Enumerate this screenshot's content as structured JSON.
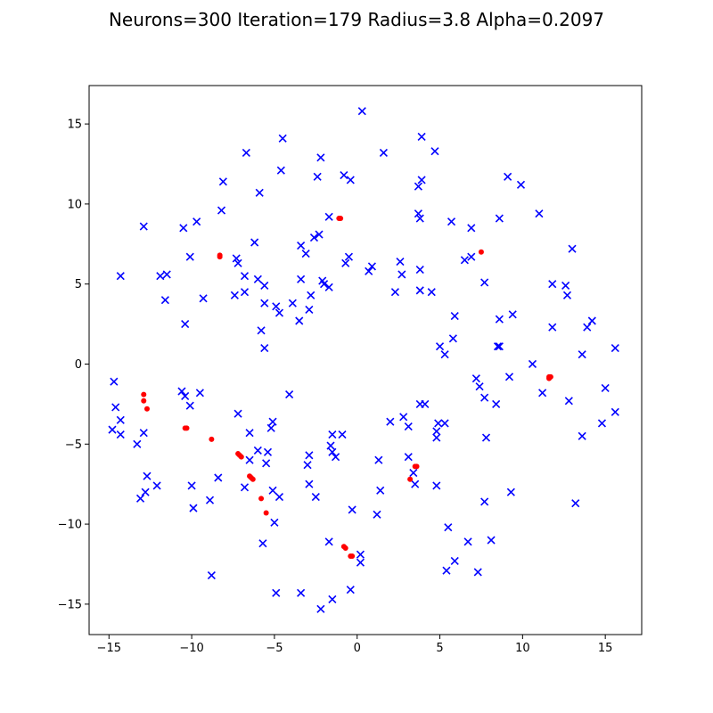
{
  "chart_data": {
    "type": "scatter",
    "title": "Neurons=300 Iteration=179 Radius=3.8 Alpha=0.2097",
    "xlabel": "",
    "ylabel": "",
    "xlim": [
      -16.2,
      17.2
    ],
    "ylim": [
      -16.9,
      17.4
    ],
    "xticks": [
      -15,
      -10,
      -5,
      0,
      5,
      10,
      15
    ],
    "yticks": [
      -15,
      -10,
      -5,
      0,
      5,
      10,
      15
    ],
    "grid": false,
    "series": [
      {
        "marker": "x",
        "color": "#0000ff",
        "points": [
          [
            0.3,
            15.8
          ],
          [
            -4.5,
            14.1
          ],
          [
            3.9,
            14.2
          ],
          [
            -6.7,
            13.2
          ],
          [
            1.6,
            13.2
          ],
          [
            4.7,
            13.3
          ],
          [
            -2.2,
            12.9
          ],
          [
            -4.6,
            12.1
          ],
          [
            -2.4,
            11.7
          ],
          [
            -0.8,
            11.8
          ],
          [
            -0.4,
            11.5
          ],
          [
            3.7,
            11.1
          ],
          [
            3.9,
            11.5
          ],
          [
            9.1,
            11.7
          ],
          [
            9.9,
            11.2
          ],
          [
            -8.1,
            11.4
          ],
          [
            -5.9,
            10.7
          ],
          [
            -8.2,
            9.6
          ],
          [
            -1.7,
            9.2
          ],
          [
            3.7,
            9.4
          ],
          [
            3.8,
            9.1
          ],
          [
            11.0,
            9.4
          ],
          [
            8.6,
            9.1
          ],
          [
            -12.9,
            8.6
          ],
          [
            -10.5,
            8.5
          ],
          [
            -9.7,
            8.9
          ],
          [
            -2.3,
            8.1
          ],
          [
            -2.6,
            7.9
          ],
          [
            5.7,
            8.9
          ],
          [
            6.9,
            8.5
          ],
          [
            -6.2,
            7.6
          ],
          [
            -3.4,
            7.4
          ],
          [
            -3.1,
            6.9
          ],
          [
            -10.1,
            6.7
          ],
          [
            -7.3,
            6.6
          ],
          [
            -7.2,
            6.3
          ],
          [
            -0.5,
            6.7
          ],
          [
            -0.7,
            6.3
          ],
          [
            0.9,
            6.1
          ],
          [
            0.7,
            5.8
          ],
          [
            2.6,
            6.4
          ],
          [
            3.8,
            5.9
          ],
          [
            6.5,
            6.5
          ],
          [
            6.9,
            6.7
          ],
          [
            13.0,
            7.2
          ],
          [
            -14.3,
            5.5
          ],
          [
            -11.9,
            5.5
          ],
          [
            -11.5,
            5.6
          ],
          [
            -6.8,
            5.5
          ],
          [
            -6.0,
            5.3
          ],
          [
            -5.6,
            4.9
          ],
          [
            -3.4,
            5.3
          ],
          [
            -2.1,
            5.2
          ],
          [
            -2.0,
            5.0
          ],
          [
            -1.7,
            4.8
          ],
          [
            2.7,
            5.6
          ],
          [
            7.7,
            5.1
          ],
          [
            11.8,
            5.0
          ],
          [
            12.6,
            4.9
          ],
          [
            -11.6,
            4.0
          ],
          [
            -9.3,
            4.1
          ],
          [
            -7.4,
            4.3
          ],
          [
            -6.8,
            4.5
          ],
          [
            -5.6,
            3.8
          ],
          [
            -4.9,
            3.6
          ],
          [
            -4.7,
            3.2
          ],
          [
            -2.8,
            4.3
          ],
          [
            -3.9,
            3.8
          ],
          [
            2.3,
            4.5
          ],
          [
            3.8,
            4.6
          ],
          [
            4.5,
            4.5
          ],
          [
            12.7,
            4.3
          ],
          [
            -10.4,
            2.5
          ],
          [
            -5.8,
            2.1
          ],
          [
            -3.5,
            2.7
          ],
          [
            -2.9,
            3.4
          ],
          [
            5.9,
            3.0
          ],
          [
            8.6,
            2.8
          ],
          [
            9.4,
            3.1
          ],
          [
            11.8,
            2.3
          ],
          [
            14.2,
            2.7
          ],
          [
            13.9,
            2.3
          ],
          [
            -5.6,
            1.0
          ],
          [
            5.0,
            1.1
          ],
          [
            5.3,
            0.6
          ],
          [
            5.8,
            1.6
          ],
          [
            8.5,
            1.1
          ],
          [
            8.6,
            1.1
          ],
          [
            13.6,
            0.6
          ],
          [
            15.6,
            1.0
          ],
          [
            10.6,
            0.0
          ],
          [
            -14.7,
            -1.1
          ],
          [
            -10.6,
            -1.7
          ],
          [
            -10.4,
            -2.0
          ],
          [
            -9.5,
            -1.8
          ],
          [
            -10.1,
            -2.6
          ],
          [
            -4.1,
            -1.9
          ],
          [
            7.2,
            -0.9
          ],
          [
            7.4,
            -1.4
          ],
          [
            9.2,
            -0.8
          ],
          [
            11.2,
            -1.8
          ],
          [
            7.7,
            -2.1
          ],
          [
            3.8,
            -2.5
          ],
          [
            4.1,
            -2.5
          ],
          [
            8.4,
            -2.5
          ],
          [
            12.8,
            -2.3
          ],
          [
            15.0,
            -1.5
          ],
          [
            -14.6,
            -2.7
          ],
          [
            -14.3,
            -3.5
          ],
          [
            -14.8,
            -4.1
          ],
          [
            -14.3,
            -4.4
          ],
          [
            -12.9,
            -4.3
          ],
          [
            -13.3,
            -5.0
          ],
          [
            -7.2,
            -3.1
          ],
          [
            -5.1,
            -3.6
          ],
          [
            -5.2,
            -4.0
          ],
          [
            -6.5,
            -4.3
          ],
          [
            -1.5,
            -4.4
          ],
          [
            -0.9,
            -4.4
          ],
          [
            -1.6,
            -5.1
          ],
          [
            -1.5,
            -5.5
          ],
          [
            2.0,
            -3.6
          ],
          [
            2.8,
            -3.3
          ],
          [
            3.1,
            -3.9
          ],
          [
            4.9,
            -3.7
          ],
          [
            5.3,
            -3.7
          ],
          [
            4.8,
            -4.2
          ],
          [
            4.8,
            -4.6
          ],
          [
            7.8,
            -4.6
          ],
          [
            13.6,
            -4.5
          ],
          [
            14.8,
            -3.7
          ],
          [
            15.6,
            -3.0
          ],
          [
            -6.0,
            -5.4
          ],
          [
            -5.4,
            -5.5
          ],
          [
            -5.5,
            -6.2
          ],
          [
            -6.5,
            -6.0
          ],
          [
            -2.9,
            -5.7
          ],
          [
            -3.0,
            -6.3
          ],
          [
            -1.3,
            -5.8
          ],
          [
            1.3,
            -6.0
          ],
          [
            3.1,
            -5.8
          ],
          [
            3.4,
            -6.8
          ],
          [
            3.5,
            -7.5
          ],
          [
            -12.7,
            -7.0
          ],
          [
            -12.1,
            -7.6
          ],
          [
            -12.8,
            -8.0
          ],
          [
            -13.1,
            -8.4
          ],
          [
            -10.0,
            -7.6
          ],
          [
            -8.4,
            -7.1
          ],
          [
            -8.9,
            -8.5
          ],
          [
            -9.9,
            -9.0
          ],
          [
            -6.8,
            -7.7
          ],
          [
            -5.1,
            -7.9
          ],
          [
            -4.7,
            -8.3
          ],
          [
            -2.9,
            -7.5
          ],
          [
            -2.5,
            -8.3
          ],
          [
            1.4,
            -7.9
          ],
          [
            4.8,
            -7.6
          ],
          [
            7.7,
            -8.6
          ],
          [
            9.3,
            -8.0
          ],
          [
            13.2,
            -8.7
          ],
          [
            -5.0,
            -9.9
          ],
          [
            -0.3,
            -9.1
          ],
          [
            1.2,
            -9.4
          ],
          [
            -5.7,
            -11.2
          ],
          [
            -1.7,
            -11.1
          ],
          [
            0.2,
            -11.9
          ],
          [
            0.2,
            -12.4
          ],
          [
            5.5,
            -10.2
          ],
          [
            6.7,
            -11.1
          ],
          [
            8.1,
            -11.0
          ],
          [
            5.9,
            -12.3
          ],
          [
            5.4,
            -12.9
          ],
          [
            7.3,
            -13.0
          ],
          [
            -8.8,
            -13.2
          ],
          [
            -4.9,
            -14.3
          ],
          [
            -3.4,
            -14.3
          ],
          [
            -1.5,
            -14.7
          ],
          [
            -0.4,
            -14.1
          ],
          [
            -2.2,
            -15.3
          ]
        ]
      },
      {
        "marker": "o",
        "color": "#ff0000",
        "points": [
          [
            -1.1,
            9.1
          ],
          [
            -1.0,
            9.1
          ],
          [
            -8.3,
            6.8
          ],
          [
            -8.3,
            6.7
          ],
          [
            7.5,
            7.0
          ],
          [
            11.6,
            -0.8
          ],
          [
            11.6,
            -0.9
          ],
          [
            11.7,
            -0.8
          ],
          [
            -12.9,
            -1.9
          ],
          [
            -12.9,
            -2.3
          ],
          [
            -12.7,
            -2.8
          ],
          [
            -10.4,
            -4.0
          ],
          [
            -10.3,
            -4.0
          ],
          [
            -8.8,
            -4.7
          ],
          [
            -7.2,
            -5.6
          ],
          [
            -7.1,
            -5.7
          ],
          [
            -7.0,
            -5.8
          ],
          [
            -6.5,
            -7.0
          ],
          [
            -6.4,
            -7.1
          ],
          [
            -6.3,
            -7.2
          ],
          [
            -5.8,
            -8.4
          ],
          [
            -5.5,
            -9.3
          ],
          [
            3.5,
            -6.4
          ],
          [
            3.6,
            -6.4
          ],
          [
            3.2,
            -7.2
          ],
          [
            -0.8,
            -11.4
          ],
          [
            -0.7,
            -11.5
          ],
          [
            -0.4,
            -12.0
          ],
          [
            -0.3,
            -12.0
          ]
        ]
      }
    ]
  }
}
